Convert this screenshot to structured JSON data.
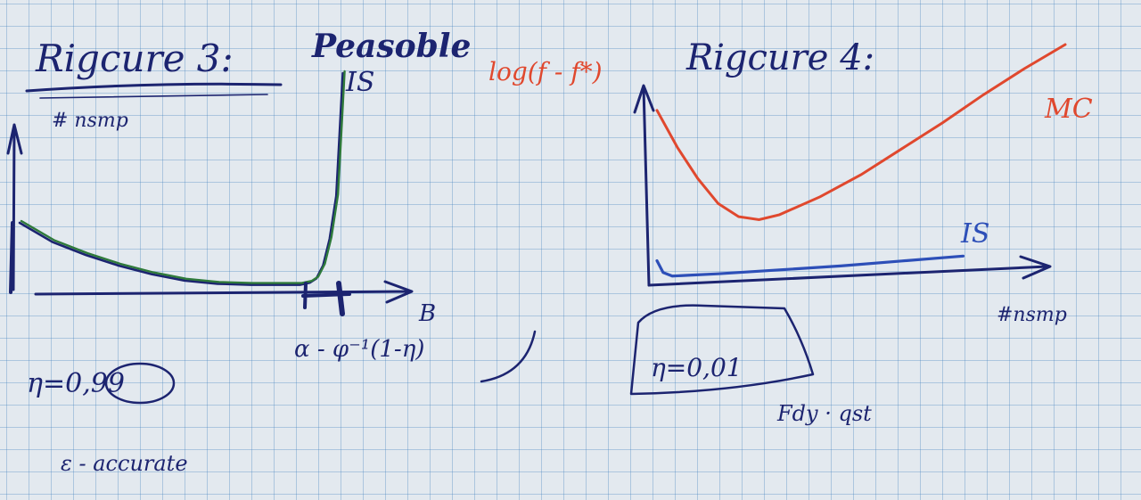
{
  "colors": {
    "navy_ink": "#1c2470",
    "green_ink": "#2f7a3a",
    "red_ink": "#e0482e",
    "blue_ink": "#2d4fb8",
    "paper": "#e3e9ef",
    "grid": "#4682be"
  },
  "left_panel": {
    "title": "Rigcure 3:",
    "subtitle": "Peasoble",
    "y_axis_label": "# nsmp",
    "curve_label": "IS",
    "x_axis_label": "B",
    "x_formula": "α - φ⁻¹(1-η)",
    "eta_value": "η=0,99",
    "epsilon_note": "ε - accurate"
  },
  "right_panel": {
    "title": "Rigcure 4:",
    "y_axis_label": "log(f - f*)",
    "mc_label": "MC",
    "is_label": "IS",
    "x_axis_label": "#nsmp",
    "eta_value": "η=0,01",
    "foot_note": "Fdy · qst"
  },
  "chart_data": [
    {
      "type": "line",
      "title": "Rigcure 3",
      "xlabel": "B",
      "ylabel": "# nsmp",
      "series": [
        {
          "name": "IS",
          "x": [
            0.0,
            0.1,
            0.2,
            0.3,
            0.4,
            0.5,
            0.6,
            0.7,
            0.8,
            0.85,
            0.88,
            0.9,
            0.92,
            0.94,
            0.96,
            0.98
          ],
          "y": [
            60,
            42,
            30,
            20,
            12,
            6,
            3,
            2,
            2,
            2,
            4,
            8,
            20,
            45,
            85,
            200
          ]
        }
      ]
    },
    {
      "type": "line",
      "title": "Rigcure 4",
      "xlabel": "#nsmp",
      "ylabel": "log(f - f*)",
      "series": [
        {
          "name": "MC",
          "x": [
            0.0,
            0.05,
            0.1,
            0.15,
            0.2,
            0.25,
            0.3,
            0.4,
            0.5,
            0.6,
            0.7,
            0.8,
            0.9,
            1.0
          ],
          "y": [
            0.85,
            0.66,
            0.5,
            0.37,
            0.3,
            0.28,
            0.3,
            0.38,
            0.48,
            0.6,
            0.72,
            0.85,
            0.97,
            1.08
          ]
        },
        {
          "name": "IS",
          "x": [
            0.0,
            0.02,
            0.05,
            0.1,
            0.2,
            0.4,
            0.6,
            0.8,
            1.0
          ],
          "y": [
            0.1,
            0.04,
            0.02,
            0.02,
            0.02,
            0.025,
            0.03,
            0.04,
            0.05
          ]
        }
      ]
    }
  ]
}
